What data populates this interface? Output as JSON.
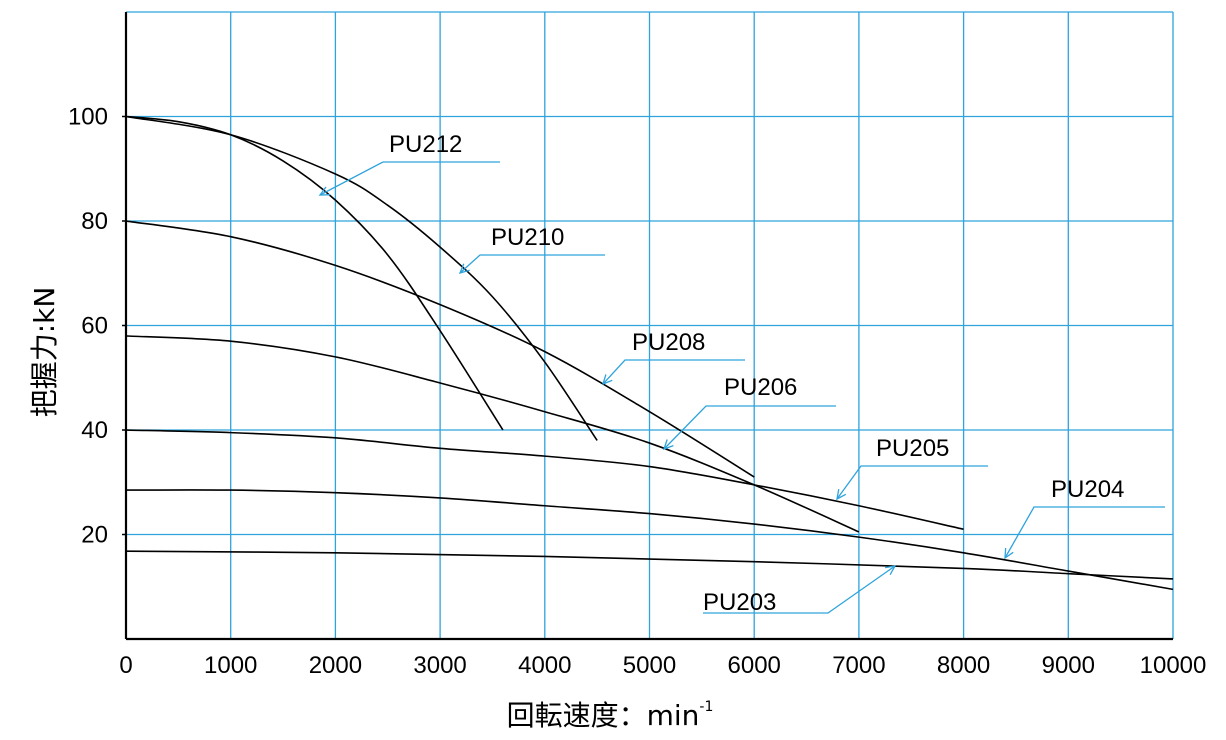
{
  "chart_data": {
    "type": "line",
    "title": "",
    "xlabel": "回転速度：min",
    "xlabel_superscript": "-1",
    "ylabel": "把握力:kN",
    "xlim": [
      0,
      10000
    ],
    "ylim": [
      0,
      120
    ],
    "x_ticks": [
      0,
      1000,
      2000,
      3000,
      4000,
      5000,
      6000,
      7000,
      8000,
      9000,
      10000
    ],
    "x_tick_labels": [
      "0",
      "1000",
      "2000",
      "3000",
      "4000",
      "5000",
      "6000",
      "7000",
      "8000",
      "9000",
      "10000"
    ],
    "y_ticks": [
      20,
      40,
      60,
      80,
      100
    ],
    "y_tick_labels": [
      "20",
      "40",
      "60",
      "80",
      "100"
    ],
    "grid": true,
    "grid_color": "#2ea3dc",
    "line_color": "#000000",
    "series": [
      {
        "name": "PU212",
        "x": [
          0,
          500,
          1000,
          1500,
          2000,
          2500,
          3000,
          3600
        ],
        "values": [
          100,
          99,
          96.5,
          91.5,
          84,
          73.5,
          59,
          40
        ]
      },
      {
        "name": "PU210",
        "x": [
          0,
          1000,
          2000,
          2500,
          3000,
          3500,
          4000,
          4500
        ],
        "values": [
          100,
          96.5,
          89,
          83,
          75,
          65.5,
          53,
          38
        ]
      },
      {
        "name": "PU208",
        "x": [
          0,
          1000,
          2000,
          3000,
          4000,
          5000,
          6000
        ],
        "values": [
          80,
          77,
          71.5,
          64,
          55,
          43.5,
          31
        ]
      },
      {
        "name": "PU206",
        "x": [
          0,
          1000,
          2000,
          3000,
          4000,
          5000,
          6000,
          7000
        ],
        "values": [
          58,
          57,
          54,
          49,
          43.5,
          37.5,
          29.5,
          20.5
        ]
      },
      {
        "name": "PU205",
        "x": [
          0,
          1000,
          2000,
          3000,
          4000,
          5000,
          6000,
          7000,
          8000
        ],
        "values": [
          40,
          39.5,
          38.5,
          36.5,
          35,
          33,
          29.5,
          25.5,
          21
        ]
      },
      {
        "name": "PU204",
        "x": [
          0,
          1000,
          2000,
          3000,
          4000,
          5000,
          6000,
          7000,
          8000,
          9000,
          10000
        ],
        "values": [
          28.5,
          28.5,
          28,
          27,
          25.5,
          24,
          22,
          19.5,
          16.5,
          13,
          9.5
        ]
      },
      {
        "name": "PU203",
        "x": [
          0,
          2000,
          4000,
          6000,
          8000,
          9000,
          10000
        ],
        "values": [
          16.8,
          16.5,
          15.8,
          14.8,
          13.5,
          12.5,
          11.5
        ]
      }
    ]
  }
}
